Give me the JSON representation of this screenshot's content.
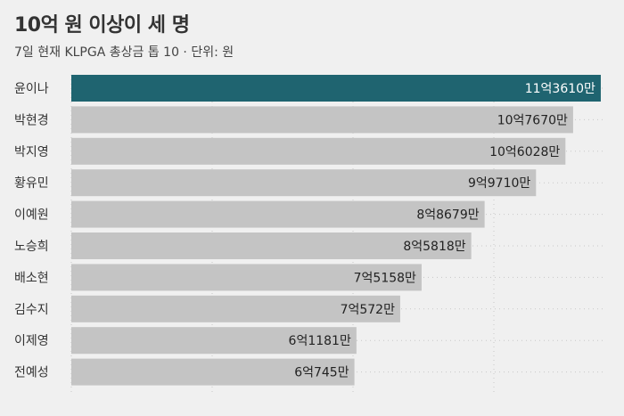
{
  "header": {
    "title": "10억 원 이상이 세 명",
    "subtitle": "7일 현재 KLPGA 총상금 톱 10 · 단위: 원"
  },
  "colors": {
    "highlight": "#1f6470",
    "bar": "#c4c4c4",
    "background": "#f0f0f0"
  },
  "chart_data": {
    "type": "bar",
    "orientation": "horizontal",
    "title": "10억 원 이상이 세 명",
    "subtitle": "7일 현재 KLPGA 총상금 톱 10 · 단위: 원",
    "unit": "원",
    "categories": [
      "윤이나",
      "박현경",
      "박지영",
      "황유민",
      "이예원",
      "노승희",
      "배소현",
      "김수지",
      "이제영",
      "전예성"
    ],
    "values": [
      1136100000,
      1076700000,
      1060280000,
      997100000,
      886790000,
      858180000,
      751580000,
      705720000,
      611810000,
      607450000
    ],
    "value_labels": [
      "11억3610만",
      "10억7670만",
      "10억6028만",
      "9억9710만",
      "8억8679만",
      "8억5818만",
      "7억5158만",
      "7억572만",
      "6억1181만",
      "6억745만"
    ],
    "highlight_index": 0,
    "xlim": [
      0,
      1140000000
    ],
    "grid": true
  }
}
